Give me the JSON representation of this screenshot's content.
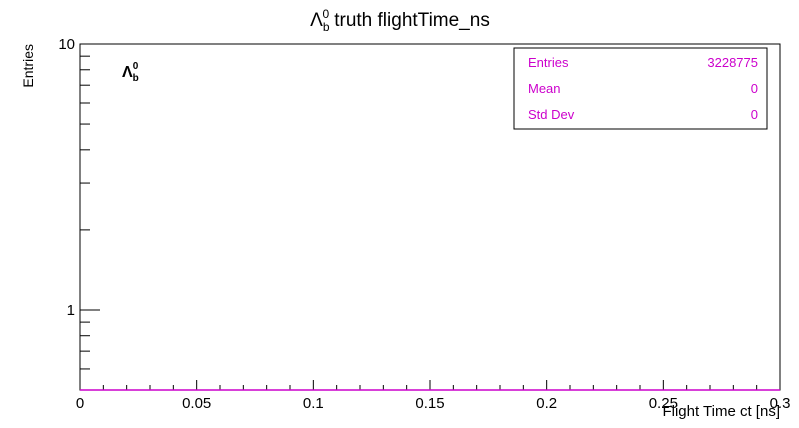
{
  "chart_data": {
    "type": "histogram",
    "title": {
      "symbol": "Λ",
      "subscript": "b",
      "superscript": "0",
      "rest": "truth flightTime_ns"
    },
    "xlabel": "Flight Time ct [ns]",
    "ylabel": "Entries",
    "xlim": [
      0,
      0.3
    ],
    "ylim": [
      0.5,
      10
    ],
    "yscale": "log",
    "x_ticks": [
      {
        "value": 0,
        "label": "0"
      },
      {
        "value": 0.05,
        "label": "0.05"
      },
      {
        "value": 0.1,
        "label": "0.1"
      },
      {
        "value": 0.15,
        "label": "0.15"
      },
      {
        "value": 0.2,
        "label": "0.2"
      },
      {
        "value": 0.25,
        "label": "0.25"
      },
      {
        "value": 0.3,
        "label": "0.3"
      }
    ],
    "y_ticks": [
      {
        "value": 1,
        "label": "1"
      },
      {
        "value": 10,
        "label": "10"
      }
    ],
    "grid": false,
    "series": [
      {
        "color": "#cc00cc",
        "x": [
          0,
          0.3
        ],
        "values": [
          0,
          0
        ]
      }
    ],
    "annotation": {
      "symbol": "Λ",
      "subscript": "b",
      "superscript": "0"
    },
    "stats_box": {
      "position": "top-right",
      "color": "#cc00cc",
      "rows": [
        {
          "label": "Entries",
          "value": "3228775"
        },
        {
          "label": "Mean",
          "value": "0"
        },
        {
          "label": "Std Dev",
          "value": "0"
        }
      ]
    }
  }
}
